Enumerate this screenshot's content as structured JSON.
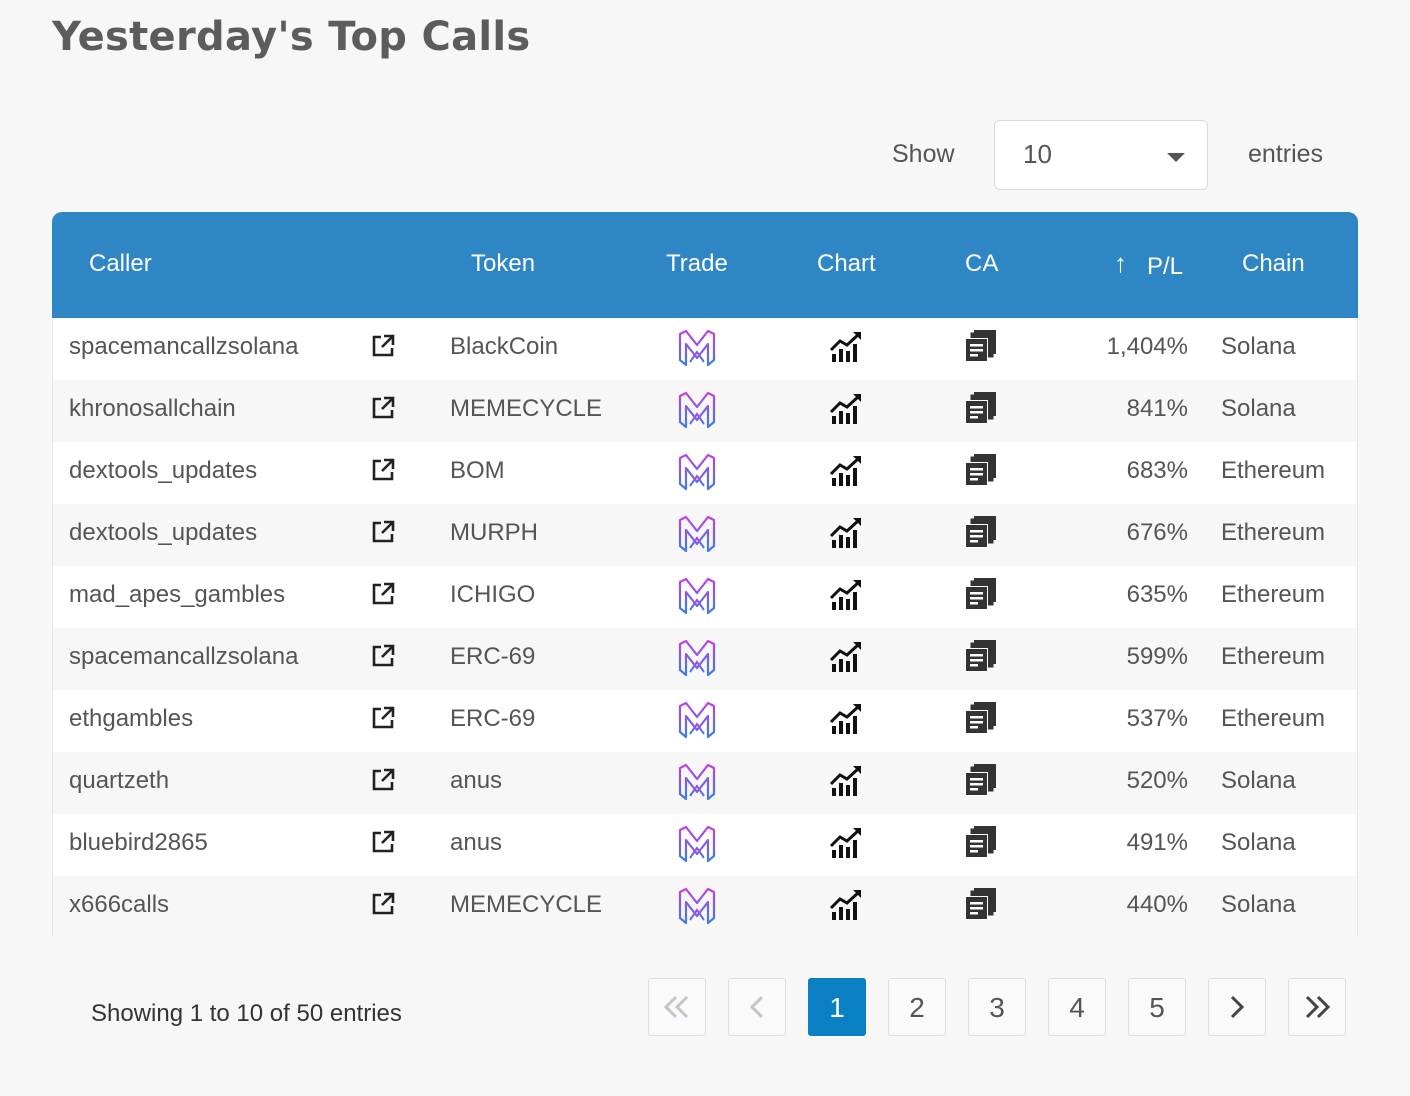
{
  "page": {
    "title": "Yesterday's Top Calls"
  },
  "length_control": {
    "show_label": "Show",
    "value": "10",
    "entries_label": "entries"
  },
  "table": {
    "headers": {
      "caller": "Caller",
      "token": "Token",
      "trade": "Trade",
      "chart": "Chart",
      "ca": "CA",
      "pl": "P/L",
      "chain": "Chain"
    },
    "rows": [
      {
        "caller": "spacemancallzsolana",
        "token": "BlackCoin",
        "pl": "1,404%",
        "chain": "Solana"
      },
      {
        "caller": "khronosallchain",
        "token": "MEMECYCLE",
        "pl": "841%",
        "chain": "Solana"
      },
      {
        "caller": "dextools_updates",
        "token": "BOM",
        "pl": "683%",
        "chain": "Ethereum"
      },
      {
        "caller": "dextools_updates",
        "token": "MURPH",
        "pl": "676%",
        "chain": "Ethereum"
      },
      {
        "caller": "mad_apes_gambles",
        "token": "ICHIGO",
        "pl": "635%",
        "chain": "Ethereum"
      },
      {
        "caller": "spacemancallzsolana",
        "token": "ERC-69",
        "pl": "599%",
        "chain": "Ethereum"
      },
      {
        "caller": "ethgambles",
        "token": "ERC-69",
        "pl": "537%",
        "chain": "Ethereum"
      },
      {
        "caller": "quartzeth",
        "token": "anus",
        "pl": "520%",
        "chain": "Solana"
      },
      {
        "caller": "bluebird2865",
        "token": "anus",
        "pl": "491%",
        "chain": "Solana"
      },
      {
        "caller": "x666calls",
        "token": "MEMECYCLE",
        "pl": "440%",
        "chain": "Solana"
      }
    ]
  },
  "footer": {
    "info": "Showing 1 to 10 of 50 entries"
  },
  "pagination": {
    "pages": [
      "1",
      "2",
      "3",
      "4",
      "5"
    ],
    "current": "1"
  },
  "icons": {
    "caller_link": "external-link-icon",
    "trade": "trade-logo-icon",
    "chart": "chart-icon",
    "ca": "copy-icon",
    "sort": "arrow-up-icon"
  },
  "colors": {
    "header_bg": "#2f86c5",
    "active_page": "#0a7fc4"
  }
}
